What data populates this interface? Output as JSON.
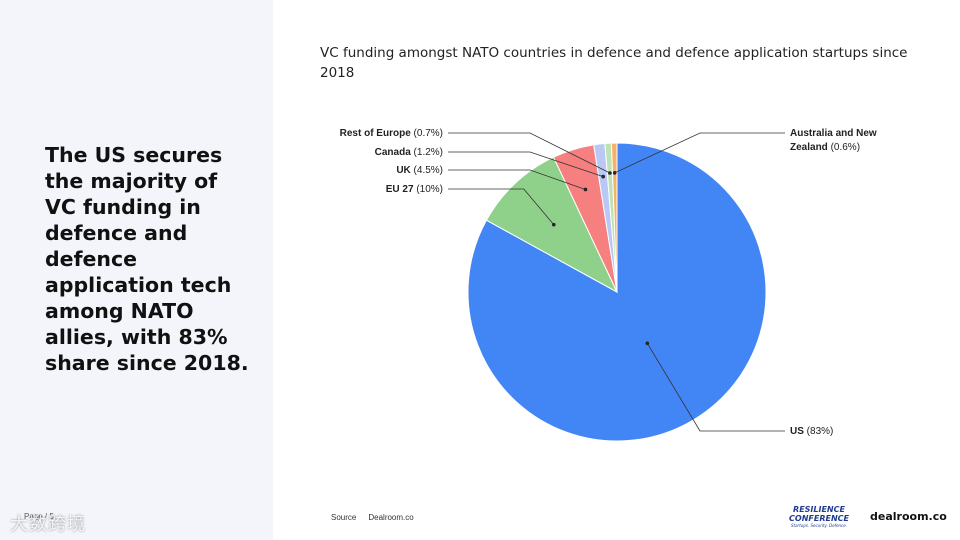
{
  "headline": "The US secures the majority of VC funding in defence and defence application tech among NATO allies, with 83% share since 2018.",
  "footer": {
    "page": "Page / 5",
    "source_label": "Source",
    "source_value": "Dealroom.co"
  },
  "logos": {
    "resilience_line1": "RESILIENCE",
    "resilience_line2": "CONFERENCE",
    "resilience_tagline": "Startups. Security. Defence.",
    "dealroom": "dealroom.co"
  },
  "watermark": "大数跨境",
  "chart_data": {
    "type": "pie",
    "title": "VC funding amongst NATO countries in defence and defence application startups since 2018",
    "slices": [
      {
        "name": "US",
        "value": 83,
        "display": "(83%)",
        "color": "#4285f4"
      },
      {
        "name": "EU 27",
        "value": 10,
        "display": "(10%)",
        "color": "#8fd18a"
      },
      {
        "name": "UK",
        "value": 4.5,
        "display": "(4.5%)",
        "color": "#f67f7f"
      },
      {
        "name": "Canada",
        "value": 1.2,
        "display": "(1.2%)",
        "color": "#b9c8f5"
      },
      {
        "name": "Rest of Europe",
        "value": 0.7,
        "display": "(0.7%)",
        "color": "#bde3b5"
      },
      {
        "name": "Australia and New Zealand",
        "value": 0.6,
        "display": "(0.6%)",
        "color": "#f6b26b"
      }
    ],
    "start_angle": "12 o'clock",
    "direction": "clockwise",
    "source": "Dealroom.co"
  }
}
